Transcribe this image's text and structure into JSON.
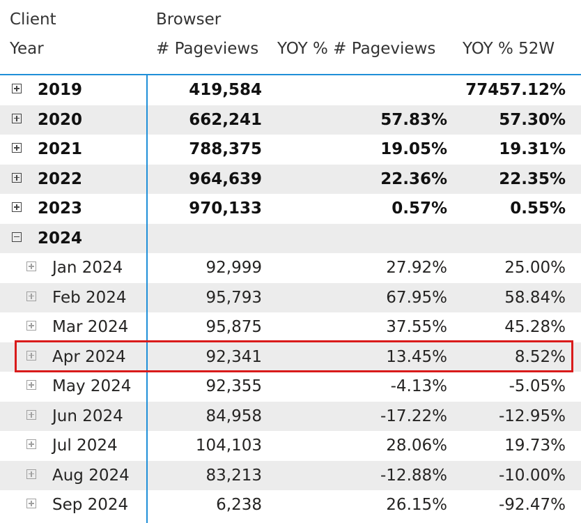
{
  "header": {
    "row_field_line1": "Client",
    "row_field_line2": "Year",
    "column_group": "Browser",
    "columns": [
      "# Pageviews",
      "YOY % # Pageviews",
      "YOY % 52W"
    ]
  },
  "rows": [
    {
      "label": "2019",
      "level": "year",
      "expanded": false,
      "pageviews": "419,584",
      "yoy": "",
      "yoy52": "77457.12%"
    },
    {
      "label": "2020",
      "level": "year",
      "expanded": false,
      "pageviews": "662,241",
      "yoy": "57.83%",
      "yoy52": "57.30%"
    },
    {
      "label": "2021",
      "level": "year",
      "expanded": false,
      "pageviews": "788,375",
      "yoy": "19.05%",
      "yoy52": "19.31%"
    },
    {
      "label": "2022",
      "level": "year",
      "expanded": false,
      "pageviews": "964,639",
      "yoy": "22.36%",
      "yoy52": "22.35%"
    },
    {
      "label": "2023",
      "level": "year",
      "expanded": false,
      "pageviews": "970,133",
      "yoy": "0.57%",
      "yoy52": "0.55%"
    },
    {
      "label": "2024",
      "level": "year",
      "expanded": true,
      "pageviews": "",
      "yoy": "",
      "yoy52": ""
    },
    {
      "label": "Jan 2024",
      "level": "month",
      "expanded": false,
      "pageviews": "92,999",
      "yoy": "27.92%",
      "yoy52": "25.00%"
    },
    {
      "label": "Feb 2024",
      "level": "month",
      "expanded": false,
      "pageviews": "95,793",
      "yoy": "67.95%",
      "yoy52": "58.84%"
    },
    {
      "label": "Mar 2024",
      "level": "month",
      "expanded": false,
      "pageviews": "95,875",
      "yoy": "37.55%",
      "yoy52": "45.28%"
    },
    {
      "label": "Apr 2024",
      "level": "month",
      "expanded": false,
      "pageviews": "92,341",
      "yoy": "13.45%",
      "yoy52": "8.52%"
    },
    {
      "label": "May 2024",
      "level": "month",
      "expanded": false,
      "pageviews": "92,355",
      "yoy": "-4.13%",
      "yoy52": "-5.05%"
    },
    {
      "label": "Jun 2024",
      "level": "month",
      "expanded": false,
      "pageviews": "84,958",
      "yoy": "-17.22%",
      "yoy52": "-12.95%"
    },
    {
      "label": "Jul 2024",
      "level": "month",
      "expanded": false,
      "pageviews": "104,103",
      "yoy": "28.06%",
      "yoy52": "19.73%"
    },
    {
      "label": "Aug 2024",
      "level": "month",
      "expanded": false,
      "pageviews": "83,213",
      "yoy": "-12.88%",
      "yoy52": "-10.00%"
    },
    {
      "label": "Sep 2024",
      "level": "month",
      "expanded": false,
      "pageviews": "6,238",
      "yoy": "26.15%",
      "yoy52": "-92.47%"
    }
  ],
  "highlighted_row": "Apr 2024",
  "colors": {
    "accent_divider": "#1f8fd8",
    "highlight_border": "#d91b1b",
    "banded_row": "#ececec"
  }
}
